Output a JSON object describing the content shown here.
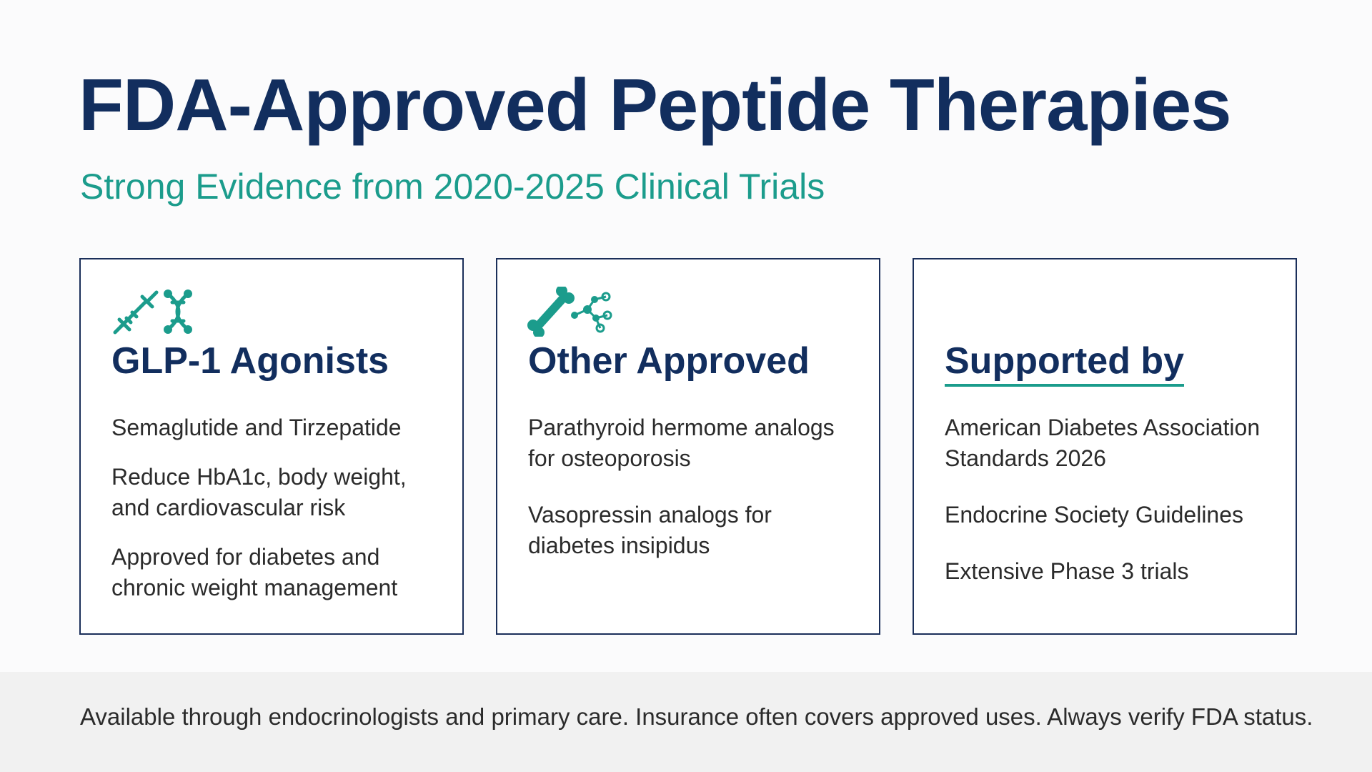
{
  "header": {
    "title": "FDA-Approved Peptide Therapies",
    "subtitle": "Strong Evidence from 2020-2025 Clinical Trials"
  },
  "cards": [
    {
      "heading": "GLP-1 Agonists",
      "items": [
        "Semaglutide and Tirzepatide",
        "Reduce HbA1c, body weight, and cardiovascular risk",
        "Approved for diabetes and chronic weight management"
      ]
    },
    {
      "heading": "Other Approved",
      "items": [
        "Parathyroid hermome analogs for osteoporosis",
        "Vasopressin analogs for diabetes insipidus"
      ]
    },
    {
      "heading": "Supported by",
      "items": [
        "American Diabetes Association Standards 2026",
        "Endocrine Society Guidelines",
        "Extensive Phase 3 trials"
      ]
    }
  ],
  "footer": {
    "text": "Available through endocrinologists and primary care. Insurance often covers approved uses. Always verify FDA status."
  }
}
